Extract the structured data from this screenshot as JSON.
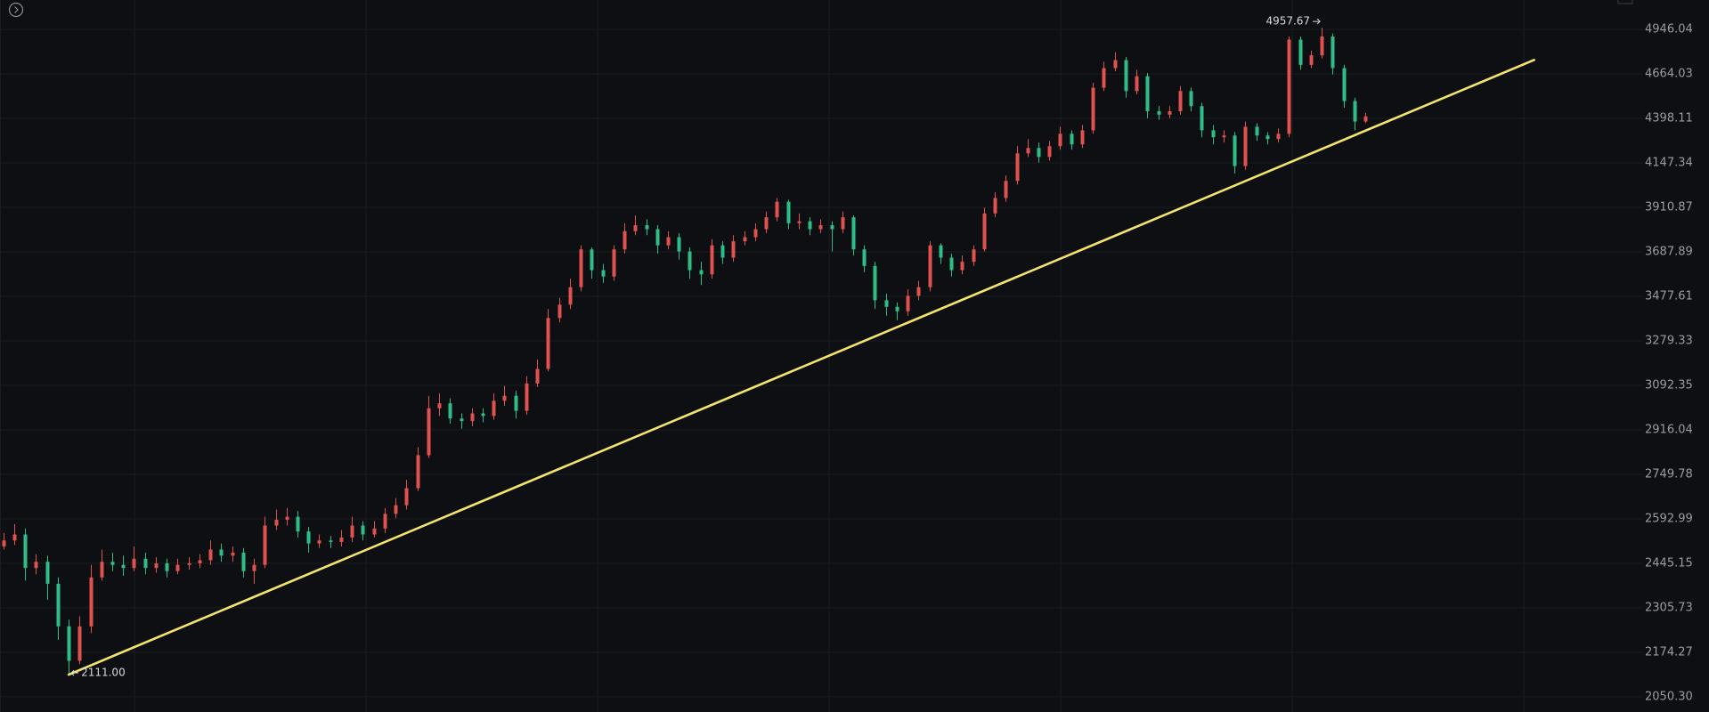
{
  "chart_data": {
    "type": "candlestick",
    "xlim": [
      -0.3,
      150.5
    ],
    "ylim": [
      2009.5,
      5142
    ],
    "log_scale": true,
    "grid": true,
    "up_color": "#e0524f",
    "down_color": "#2ebd85",
    "yticks": [
      {
        "value": 2050.3,
        "label": "2050.30"
      },
      2174.27,
      2305.73,
      2445.15,
      2592.99,
      2749.78,
      2916.04,
      3092.35,
      3279.33,
      3477.61,
      3687.89,
      3910.87,
      4147.34,
      4398.11,
      4664.03,
      4946.04
    ],
    "open": [
      2500,
      2520,
      2540,
      2430,
      2450,
      2380,
      2250,
      2150,
      2250,
      2400,
      2450,
      2440,
      2430,
      2460,
      2430,
      2445,
      2420,
      2440,
      2445,
      2455,
      2490,
      2470,
      2480,
      2420,
      2440,
      2570,
      2590,
      2600,
      2550,
      2510,
      2520,
      2515,
      2530,
      2570,
      2540,
      2560,
      2610,
      2640,
      2700,
      2820,
      3000,
      3020,
      2960,
      2950,
      2980,
      2970,
      3030,
      3050,
      2990,
      3100,
      3160,
      3380,
      3440,
      3520,
      3700,
      3600,
      3570,
      3700,
      3790,
      3820,
      3800,
      3720,
      3760,
      3690,
      3600,
      3580,
      3720,
      3660,
      3740,
      3760,
      3800,
      3860,
      3940,
      3830,
      3840,
      3800,
      3820,
      3800,
      3860,
      3700,
      3620,
      3460,
      3430,
      3410,
      3480,
      3520,
      3720,
      3660,
      3600,
      3640,
      3700,
      3880,
      3960,
      4050,
      4200,
      4230,
      4180,
      4240,
      4310,
      4250,
      4330,
      4580,
      4700,
      4750,
      4560,
      4650,
      4440,
      4420,
      4440,
      4560,
      4470,
      4330,
      4290,
      4300,
      4130,
      4350,
      4300,
      4280,
      4310,
      4880,
      4720,
      4780,
      4900,
      4700,
      4500,
      4380
    ],
    "high": [
      2545,
      2575,
      2560,
      2475,
      2470,
      2400,
      2270,
      2280,
      2440,
      2490,
      2480,
      2470,
      2500,
      2480,
      2465,
      2460,
      2460,
      2465,
      2475,
      2520,
      2510,
      2500,
      2495,
      2460,
      2600,
      2625,
      2630,
      2620,
      2565,
      2540,
      2535,
      2555,
      2600,
      2585,
      2585,
      2630,
      2665,
      2730,
      2850,
      3050,
      3060,
      3040,
      2980,
      3000,
      3000,
      3060,
      3090,
      3070,
      3130,
      3200,
      3420,
      3470,
      3560,
      3720,
      3710,
      3630,
      3720,
      3830,
      3870,
      3850,
      3820,
      3790,
      3780,
      3710,
      3640,
      3750,
      3740,
      3770,
      3790,
      3830,
      3890,
      3960,
      3950,
      3880,
      3860,
      3850,
      3840,
      3890,
      3870,
      3720,
      3640,
      3490,
      3450,
      3510,
      3550,
      3740,
      3730,
      3680,
      3670,
      3720,
      3910,
      3990,
      4080,
      4240,
      4280,
      4260,
      4270,
      4350,
      4330,
      4360,
      4610,
      4740,
      4800,
      4770,
      4690,
      4670,
      4470,
      4470,
      4590,
      4580,
      4490,
      4360,
      4330,
      4320,
      4380,
      4370,
      4320,
      4340,
      4900,
      4900,
      4810,
      4957.67,
      4920,
      4720,
      4520,
      4430
    ],
    "low": [
      2490,
      2505,
      2390,
      2410,
      2330,
      2210,
      2111,
      2140,
      2230,
      2390,
      2420,
      2405,
      2420,
      2410,
      2415,
      2400,
      2410,
      2425,
      2430,
      2440,
      2450,
      2450,
      2400,
      2380,
      2430,
      2555,
      2570,
      2530,
      2480,
      2495,
      2495,
      2500,
      2515,
      2520,
      2530,
      2545,
      2595,
      2625,
      2690,
      2810,
      2970,
      2940,
      2920,
      2930,
      2945,
      2955,
      3010,
      2960,
      2975,
      3085,
      3150,
      3360,
      3420,
      3500,
      3560,
      3540,
      3550,
      3680,
      3770,
      3770,
      3680,
      3700,
      3650,
      3560,
      3530,
      3560,
      3630,
      3640,
      3720,
      3740,
      3780,
      3840,
      3800,
      3800,
      3770,
      3780,
      3690,
      3780,
      3670,
      3590,
      3420,
      3390,
      3370,
      3390,
      3460,
      3500,
      3630,
      3570,
      3580,
      3620,
      3690,
      3860,
      3940,
      4030,
      4180,
      4150,
      4160,
      4220,
      4220,
      4230,
      4310,
      4560,
      4680,
      4520,
      4540,
      4400,
      4390,
      4400,
      4420,
      4440,
      4290,
      4250,
      4260,
      4090,
      4110,
      4270,
      4250,
      4260,
      4290,
      4690,
      4700,
      4760,
      4660,
      4460,
      4330,
      4370
    ],
    "close": [
      2520,
      2540,
      2430,
      2450,
      2380,
      2250,
      2150,
      2250,
      2400,
      2450,
      2440,
      2430,
      2460,
      2430,
      2445,
      2420,
      2440,
      2445,
      2455,
      2490,
      2470,
      2480,
      2420,
      2440,
      2570,
      2590,
      2600,
      2550,
      2510,
      2520,
      2515,
      2530,
      2570,
      2540,
      2560,
      2610,
      2640,
      2700,
      2820,
      3000,
      3020,
      2960,
      2950,
      2980,
      2970,
      3030,
      3050,
      2990,
      3100,
      3160,
      3380,
      3440,
      3520,
      3700,
      3600,
      3570,
      3700,
      3790,
      3820,
      3800,
      3720,
      3760,
      3690,
      3600,
      3580,
      3720,
      3660,
      3740,
      3760,
      3800,
      3860,
      3940,
      3830,
      3840,
      3800,
      3820,
      3800,
      3860,
      3700,
      3620,
      3460,
      3430,
      3410,
      3480,
      3520,
      3720,
      3660,
      3600,
      3640,
      3700,
      3880,
      3960,
      4050,
      4200,
      4230,
      4180,
      4240,
      4310,
      4250,
      4330,
      4580,
      4700,
      4750,
      4560,
      4650,
      4440,
      4420,
      4440,
      4560,
      4470,
      4330,
      4290,
      4300,
      4130,
      4350,
      4300,
      4280,
      4310,
      4880,
      4720,
      4780,
      4900,
      4700,
      4500,
      4380,
      4410
    ],
    "trendline": {
      "x": [
        6,
        140.5
      ],
      "values": [
        2111,
        4751
      ],
      "color": "#f3e56c"
    },
    "high_label": {
      "index": 121,
      "value": 4957.67
    },
    "low_label": {
      "index": 6,
      "value": 2111,
      "label": "2111.00"
    }
  }
}
